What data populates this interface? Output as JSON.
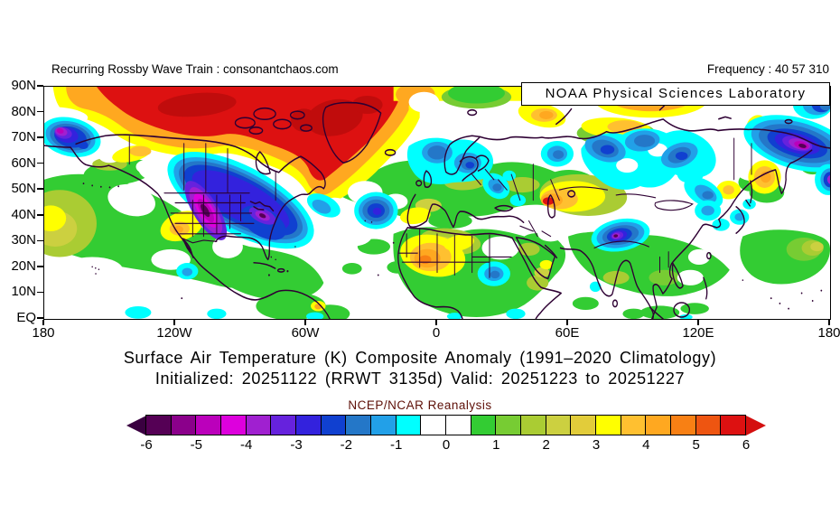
{
  "header": {
    "left_text": "Recurring Rossby Wave Train : consonantchaos.com",
    "right_text": "Frequency : 40 57 310",
    "badge": "NOAA Physical Sciences Laboratory"
  },
  "map": {
    "lat_ticks": [
      "90N",
      "80N",
      "70N",
      "60N",
      "50N",
      "40N",
      "30N",
      "20N",
      "10N",
      "EQ"
    ],
    "lon_ticks": [
      "180",
      "120W",
      "60W",
      "0",
      "60E",
      "120E",
      "180"
    ]
  },
  "titles": {
    "line1": "Surface Air Temperature (K) Composite Anomaly (1991–2020 Climatology)",
    "line2": "Initialized: 20251122 (RRWT 3135d) Valid: 20251223 to 20251227",
    "dataset": "NCEP/NCAR Reanalysis"
  },
  "chart_data": {
    "type": "filled_contour_map",
    "variable": "Surface Air Temperature Composite Anomaly",
    "units": "K",
    "climatology": "1991–2020",
    "initialized": "20251122",
    "composite_id": "RRWT 3135d",
    "valid": "20251223 to 20251227",
    "frequency": "40 57 310",
    "dataset": "NCEP/NCAR Reanalysis",
    "projection": "equirectangular",
    "domain": {
      "lat": [
        "EQ",
        "90N"
      ],
      "lon": [
        "180W",
        "180E"
      ]
    },
    "colorbar": {
      "interval": 0.5,
      "tick_labels": [
        "-6",
        "-5",
        "-4",
        "-3",
        "-2",
        "-1",
        "0",
        "1",
        "2",
        "3",
        "4",
        "5",
        "6"
      ],
      "under_arrow_color": "#3A0040",
      "over_arrow_color": "#D40F0F",
      "segment_colors": [
        "#550055",
        "#8B008B",
        "#BB00BB",
        "#DD00DD",
        "#A020D0",
        "#6622DD",
        "#3322DD",
        "#1040D0",
        "#2477C8",
        "#22A0E8",
        "#00FFFF",
        "#FFFFFF",
        "#FFFFFF",
        "#33CC33",
        "#77CC33",
        "#AACC33",
        "#CCD040",
        "#E2CC3A",
        "#FFFF00",
        "#FFC030",
        "#FFA820",
        "#F88014",
        "#EE5511",
        "#DD1111"
      ]
    },
    "features": [
      {
        "region": "Arctic Canada, Canadian Archipelago, Greenland",
        "sign": "warm",
        "approx_peak_K": "+6 or more"
      },
      {
        "region": "Kara Sea / Arctic Siberia (80-90N, 70-120E)",
        "sign": "warm",
        "approx_peak_K": "+5 to +6"
      },
      {
        "region": "Central US Plains into Midwest and Northeast US",
        "sign": "cold",
        "approx_peak_K": "-5 to -6"
      },
      {
        "region": "Bering Strait / Chukotka (60-78N near dateline)",
        "sign": "cold",
        "approx_peak_K": "-4 to -5"
      },
      {
        "region": "Northeast Siberia (62-75N, 140E-180)",
        "sign": "cold",
        "approx_peak_K": "-5"
      },
      {
        "region": "Tibetan Plateau (~33N, 85E)",
        "sign": "cold",
        "approx_peak_K": "-4 to -5"
      },
      {
        "region": "Central Siberia (55-70N, 60-110E)",
        "sign": "cold",
        "approx_peak_K": "-2 to -3"
      },
      {
        "region": "Norwegian Sea / southern Scandinavia",
        "sign": "cold",
        "approx_peak_K": "-2"
      },
      {
        "region": "Central North Atlantic (~42N, 30W)",
        "sign": "cold",
        "approx_peak_K": "-2.5"
      },
      {
        "region": "Sudan (~15N, 28E)",
        "sign": "cold",
        "approx_peak_K": "-1.5"
      },
      {
        "region": "Sahara (Algeria / Mali)",
        "sign": "warm",
        "approx_peak_K": "+4"
      },
      {
        "region": "Caspian / Kazakhstan (~47N, 55E)",
        "sign": "warm",
        "approx_peak_K": "+5"
      },
      {
        "region": "Southwest United States",
        "sign": "warm",
        "approx_peak_K": "+3.5"
      },
      {
        "region": "Kamchatka / Okhotsk coast",
        "sign": "warm",
        "approx_peak_K": "+4"
      },
      {
        "region": "Midlatitude North Pacific and North Atlantic",
        "sign": "warm",
        "approx_peak_K": "+1 to +2"
      }
    ]
  }
}
